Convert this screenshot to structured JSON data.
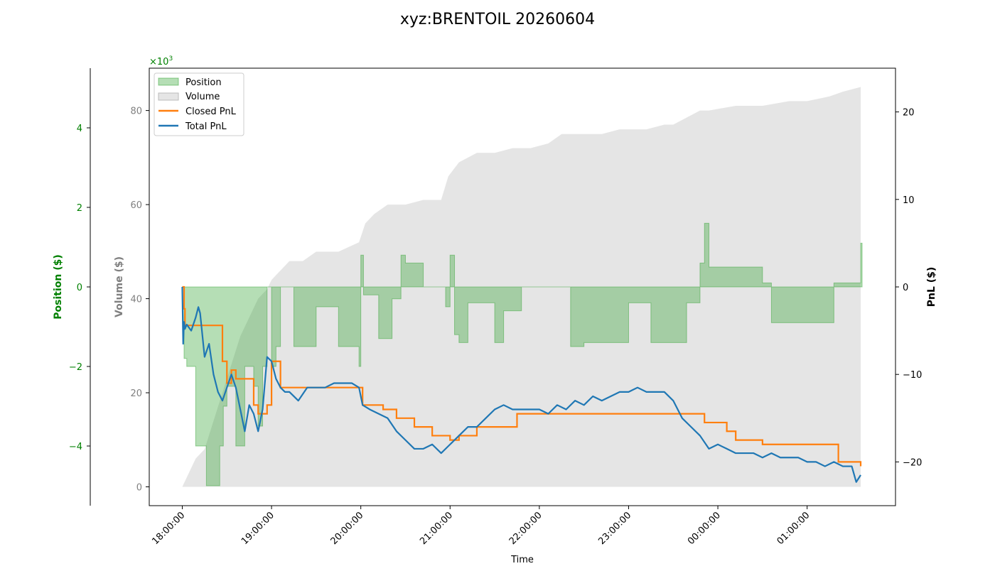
{
  "chart_data": {
    "type": "area",
    "title": "xyz:BRENTOIL 20260604",
    "xlabel": "Time",
    "x_ticks": [
      "18:00:00",
      "19:00:00",
      "20:00:00",
      "21:00:00",
      "22:00:00",
      "23:00:00",
      "00:00:00",
      "01:00:00"
    ],
    "x_range_hours": [
      17.63,
      25.99
    ],
    "axes": {
      "position": {
        "label": "Position ($)",
        "multiplier_text": "×10",
        "multiplier_exp": "3",
        "ticks": [
          -4,
          -2,
          0,
          2,
          4
        ],
        "range": [
          -5.5,
          5.5
        ],
        "color": "#008000"
      },
      "volume": {
        "label": "Volume ($)",
        "ticks": [
          0,
          20,
          40,
          60,
          80
        ],
        "range": [
          -4000,
          89000
        ],
        "color": "#808080"
      },
      "pnl": {
        "label": "PnL ($)",
        "ticks": [
          -20,
          -10,
          0,
          10,
          20
        ],
        "range": [
          -25,
          25
        ],
        "color": "#000000"
      }
    },
    "legend": {
      "placement": "top-left",
      "entries": [
        "Position",
        "Volume",
        "Closed PnL",
        "Total PnL"
      ]
    },
    "colors": {
      "position": "#2ca02c",
      "volume": "#d3d3d3",
      "closed_pnl": "#ff7f0e",
      "total_pnl": "#1f77b4"
    },
    "series": [
      {
        "name": "Position",
        "axis": "position",
        "x": [
          18.0,
          18.02,
          18.05,
          18.08,
          18.15,
          18.27,
          18.42,
          18.46,
          18.5,
          18.6,
          18.7,
          18.75,
          18.8,
          18.85,
          18.9,
          18.95,
          19.0,
          19.05,
          19.1,
          19.25,
          19.5,
          19.75,
          19.98,
          20.0,
          20.03,
          20.1,
          20.2,
          20.25,
          20.35,
          20.45,
          20.5,
          20.6,
          20.7,
          20.95,
          21.0,
          21.05,
          21.1,
          21.2,
          21.28,
          21.5,
          21.6,
          21.75,
          21.8,
          22.0,
          22.3,
          22.35,
          22.5,
          22.9,
          23.0,
          23.2,
          23.25,
          23.6,
          23.65,
          23.7,
          23.8,
          23.85,
          23.9,
          24.1,
          24.5,
          24.55,
          24.6,
          24.8,
          25.0,
          25.25,
          25.3,
          25.5,
          25.55,
          25.6
        ],
        "values": [
          0,
          -1.8,
          -2.0,
          -2.0,
          -4.0,
          -5.0,
          -4.0,
          -3.0,
          -2.5,
          -4.0,
          -2.0,
          -2.0,
          -2.5,
          -3.5,
          -2.0,
          0,
          -2.0,
          -1.5,
          0,
          -1.5,
          -0.5,
          -1.5,
          -2.0,
          0.8,
          -0.2,
          -0.2,
          -1.3,
          -1.3,
          -0.3,
          0.8,
          0.6,
          0.6,
          0,
          -0.5,
          0.8,
          -1.2,
          -1.4,
          -0.4,
          -0.4,
          -1.4,
          -0.6,
          -0.6,
          0,
          0,
          0,
          -1.5,
          -1.4,
          -1.4,
          -0.4,
          -0.4,
          -1.4,
          -1.4,
          -0.4,
          -0.4,
          0.6,
          1.6,
          0.5,
          0.5,
          0.1,
          0.1,
          -0.9,
          -0.9,
          -0.9,
          -0.9,
          0.1,
          0.1,
          0.1,
          1.1
        ]
      },
      {
        "name": "Volume",
        "axis": "volume",
        "x": [
          18.0,
          18.05,
          18.1,
          18.15,
          18.25,
          18.35,
          18.45,
          18.55,
          18.65,
          18.75,
          18.85,
          18.95,
          19.0,
          19.1,
          19.2,
          19.25,
          19.35,
          19.5,
          19.75,
          19.98,
          20.05,
          20.15,
          20.3,
          20.5,
          20.7,
          20.9,
          20.98,
          21.1,
          21.2,
          21.3,
          21.5,
          21.7,
          21.9,
          22.1,
          22.25,
          22.5,
          22.7,
          22.9,
          23.2,
          23.4,
          23.5,
          23.6,
          23.7,
          23.8,
          23.9,
          24.2,
          24.5,
          24.8,
          25.0,
          25.25,
          25.4,
          25.6
        ],
        "values": [
          0,
          2000,
          4000,
          6000,
          8000,
          14000,
          20000,
          26000,
          32000,
          36000,
          40000,
          42000,
          44000,
          46000,
          48000,
          48000,
          48000,
          50000,
          50000,
          52000,
          56000,
          58000,
          60000,
          60000,
          61000,
          61000,
          66000,
          69000,
          70000,
          71000,
          71000,
          72000,
          72000,
          73000,
          75000,
          75000,
          75000,
          76000,
          76000,
          77000,
          77000,
          78000,
          79000,
          80000,
          80000,
          81000,
          81000,
          82000,
          82000,
          83000,
          84000,
          85000
        ]
      },
      {
        "name": "Closed PnL",
        "axis": "pnl",
        "x": [
          18.0,
          18.01,
          18.02,
          18.03,
          18.1,
          18.2,
          18.3,
          18.42,
          18.45,
          18.5,
          18.55,
          18.6,
          18.7,
          18.8,
          18.85,
          18.95,
          19.0,
          19.1,
          19.2,
          19.5,
          19.98,
          20.02,
          20.25,
          20.4,
          20.6,
          20.8,
          21.0,
          21.1,
          21.3,
          21.6,
          21.75,
          22.0,
          22.3,
          22.8,
          23.2,
          23.5,
          23.6,
          23.7,
          23.85,
          24.1,
          24.2,
          24.5,
          24.8,
          25.0,
          25.25,
          25.35,
          25.6
        ],
        "values": [
          0,
          0,
          -2.5,
          -4.4,
          -4.4,
          -4.4,
          -4.4,
          -4.4,
          -8.5,
          -11.0,
          -9.5,
          -10.5,
          -10.5,
          -13.5,
          -14.5,
          -13.5,
          -8.5,
          -11.5,
          -11.5,
          -11.5,
          -11.5,
          -13.5,
          -14.0,
          -15.0,
          -16.0,
          -17.0,
          -17.5,
          -17.0,
          -16.0,
          -16.0,
          -14.5,
          -14.5,
          -14.5,
          -14.5,
          -14.5,
          -14.5,
          -14.5,
          -14.5,
          -15.5,
          -16.5,
          -17.5,
          -18.0,
          -18.0,
          -18.0,
          -18.0,
          -20.0,
          -20.5
        ]
      },
      {
        "name": "Total PnL",
        "axis": "pnl",
        "x": [
          18.0,
          18.01,
          18.02,
          18.03,
          18.05,
          18.1,
          18.15,
          18.18,
          18.2,
          18.25,
          18.3,
          18.35,
          18.4,
          18.45,
          18.5,
          18.55,
          18.6,
          18.65,
          18.7,
          18.75,
          18.8,
          18.85,
          18.9,
          18.95,
          19.0,
          19.05,
          19.1,
          19.15,
          19.2,
          19.3,
          19.4,
          19.5,
          19.6,
          19.7,
          19.8,
          19.9,
          19.98,
          20.02,
          20.1,
          20.2,
          20.3,
          20.4,
          20.5,
          20.6,
          20.7,
          20.8,
          20.9,
          21.0,
          21.1,
          21.2,
          21.3,
          21.4,
          21.5,
          21.6,
          21.7,
          21.8,
          21.9,
          22.0,
          22.1,
          22.2,
          22.3,
          22.4,
          22.5,
          22.6,
          22.7,
          22.8,
          22.9,
          23.0,
          23.1,
          23.2,
          23.3,
          23.4,
          23.5,
          23.6,
          23.7,
          23.8,
          23.9,
          24.0,
          24.1,
          24.2,
          24.3,
          24.4,
          24.5,
          24.6,
          24.7,
          24.8,
          24.9,
          25.0,
          25.1,
          25.2,
          25.3,
          25.4,
          25.5,
          25.55,
          25.6
        ],
        "values": [
          0,
          -6.5,
          -4.0,
          -4.8,
          -4.3,
          -5.0,
          -3.5,
          -2.3,
          -3.0,
          -8.0,
          -6.5,
          -10.0,
          -12.0,
          -13.0,
          -11.5,
          -10.0,
          -11.5,
          -14.0,
          -16.5,
          -13.5,
          -14.5,
          -16.5,
          -14.0,
          -8.0,
          -8.5,
          -10.5,
          -11.5,
          -12.0,
          -12.0,
          -13.0,
          -11.5,
          -11.5,
          -11.5,
          -11.0,
          -11.0,
          -11.0,
          -11.5,
          -13.5,
          -14.0,
          -14.5,
          -15.0,
          -16.5,
          -17.5,
          -18.5,
          -18.5,
          -18.0,
          -19.0,
          -18.0,
          -17.0,
          -16.0,
          -16.0,
          -15.0,
          -14.0,
          -13.5,
          -14.0,
          -14.0,
          -14.0,
          -14.0,
          -14.5,
          -13.5,
          -14.0,
          -13.0,
          -13.5,
          -12.5,
          -13.0,
          -12.5,
          -12.0,
          -12.0,
          -11.5,
          -12.0,
          -12.0,
          -12.0,
          -13.0,
          -15.0,
          -16.0,
          -17.0,
          -18.5,
          -18.0,
          -18.5,
          -19.0,
          -19.0,
          -19.0,
          -19.5,
          -19.0,
          -19.5,
          -19.5,
          -19.5,
          -20.0,
          -20.0,
          -20.5,
          -20.0,
          -20.5,
          -20.5,
          -22.3,
          -21.5
        ]
      }
    ]
  }
}
